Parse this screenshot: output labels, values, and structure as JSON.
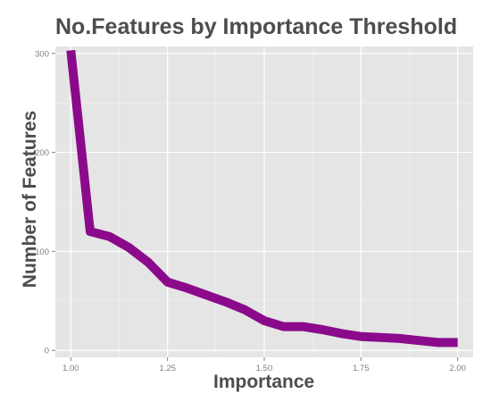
{
  "chart_data": {
    "type": "line",
    "title": "No.Features by Importance Threshold",
    "xlabel": "Importance",
    "ylabel": "Number of Features",
    "xlim": [
      0.96,
      2.04
    ],
    "ylim": [
      -7,
      307
    ],
    "x_ticks": [
      1.0,
      1.25,
      1.5,
      1.75,
      2.0
    ],
    "x_tick_labels": [
      "1.00",
      "1.25",
      "1.50",
      "1.75",
      "2.00"
    ],
    "y_ticks": [
      0,
      100,
      200,
      300
    ],
    "y_tick_labels": [
      "0",
      "100",
      "200",
      "300"
    ],
    "grid": true,
    "legend": "none",
    "colors": {
      "line": "#8b0a8b",
      "panel": "#e5e5e5",
      "grid": "#ffffff"
    },
    "series": [
      {
        "x": [
          1.0,
          1.05,
          1.1,
          1.15,
          1.2,
          1.25,
          1.3,
          1.35,
          1.4,
          1.45,
          1.5,
          1.55,
          1.6,
          1.65,
          1.7,
          1.75,
          1.8,
          1.85,
          1.9,
          1.95,
          2.0
        ],
        "y": [
          303,
          120,
          115,
          104,
          89,
          69,
          63,
          56,
          49,
          41,
          30,
          24,
          24,
          21,
          17,
          14,
          13,
          12,
          10,
          8,
          8
        ]
      }
    ]
  }
}
